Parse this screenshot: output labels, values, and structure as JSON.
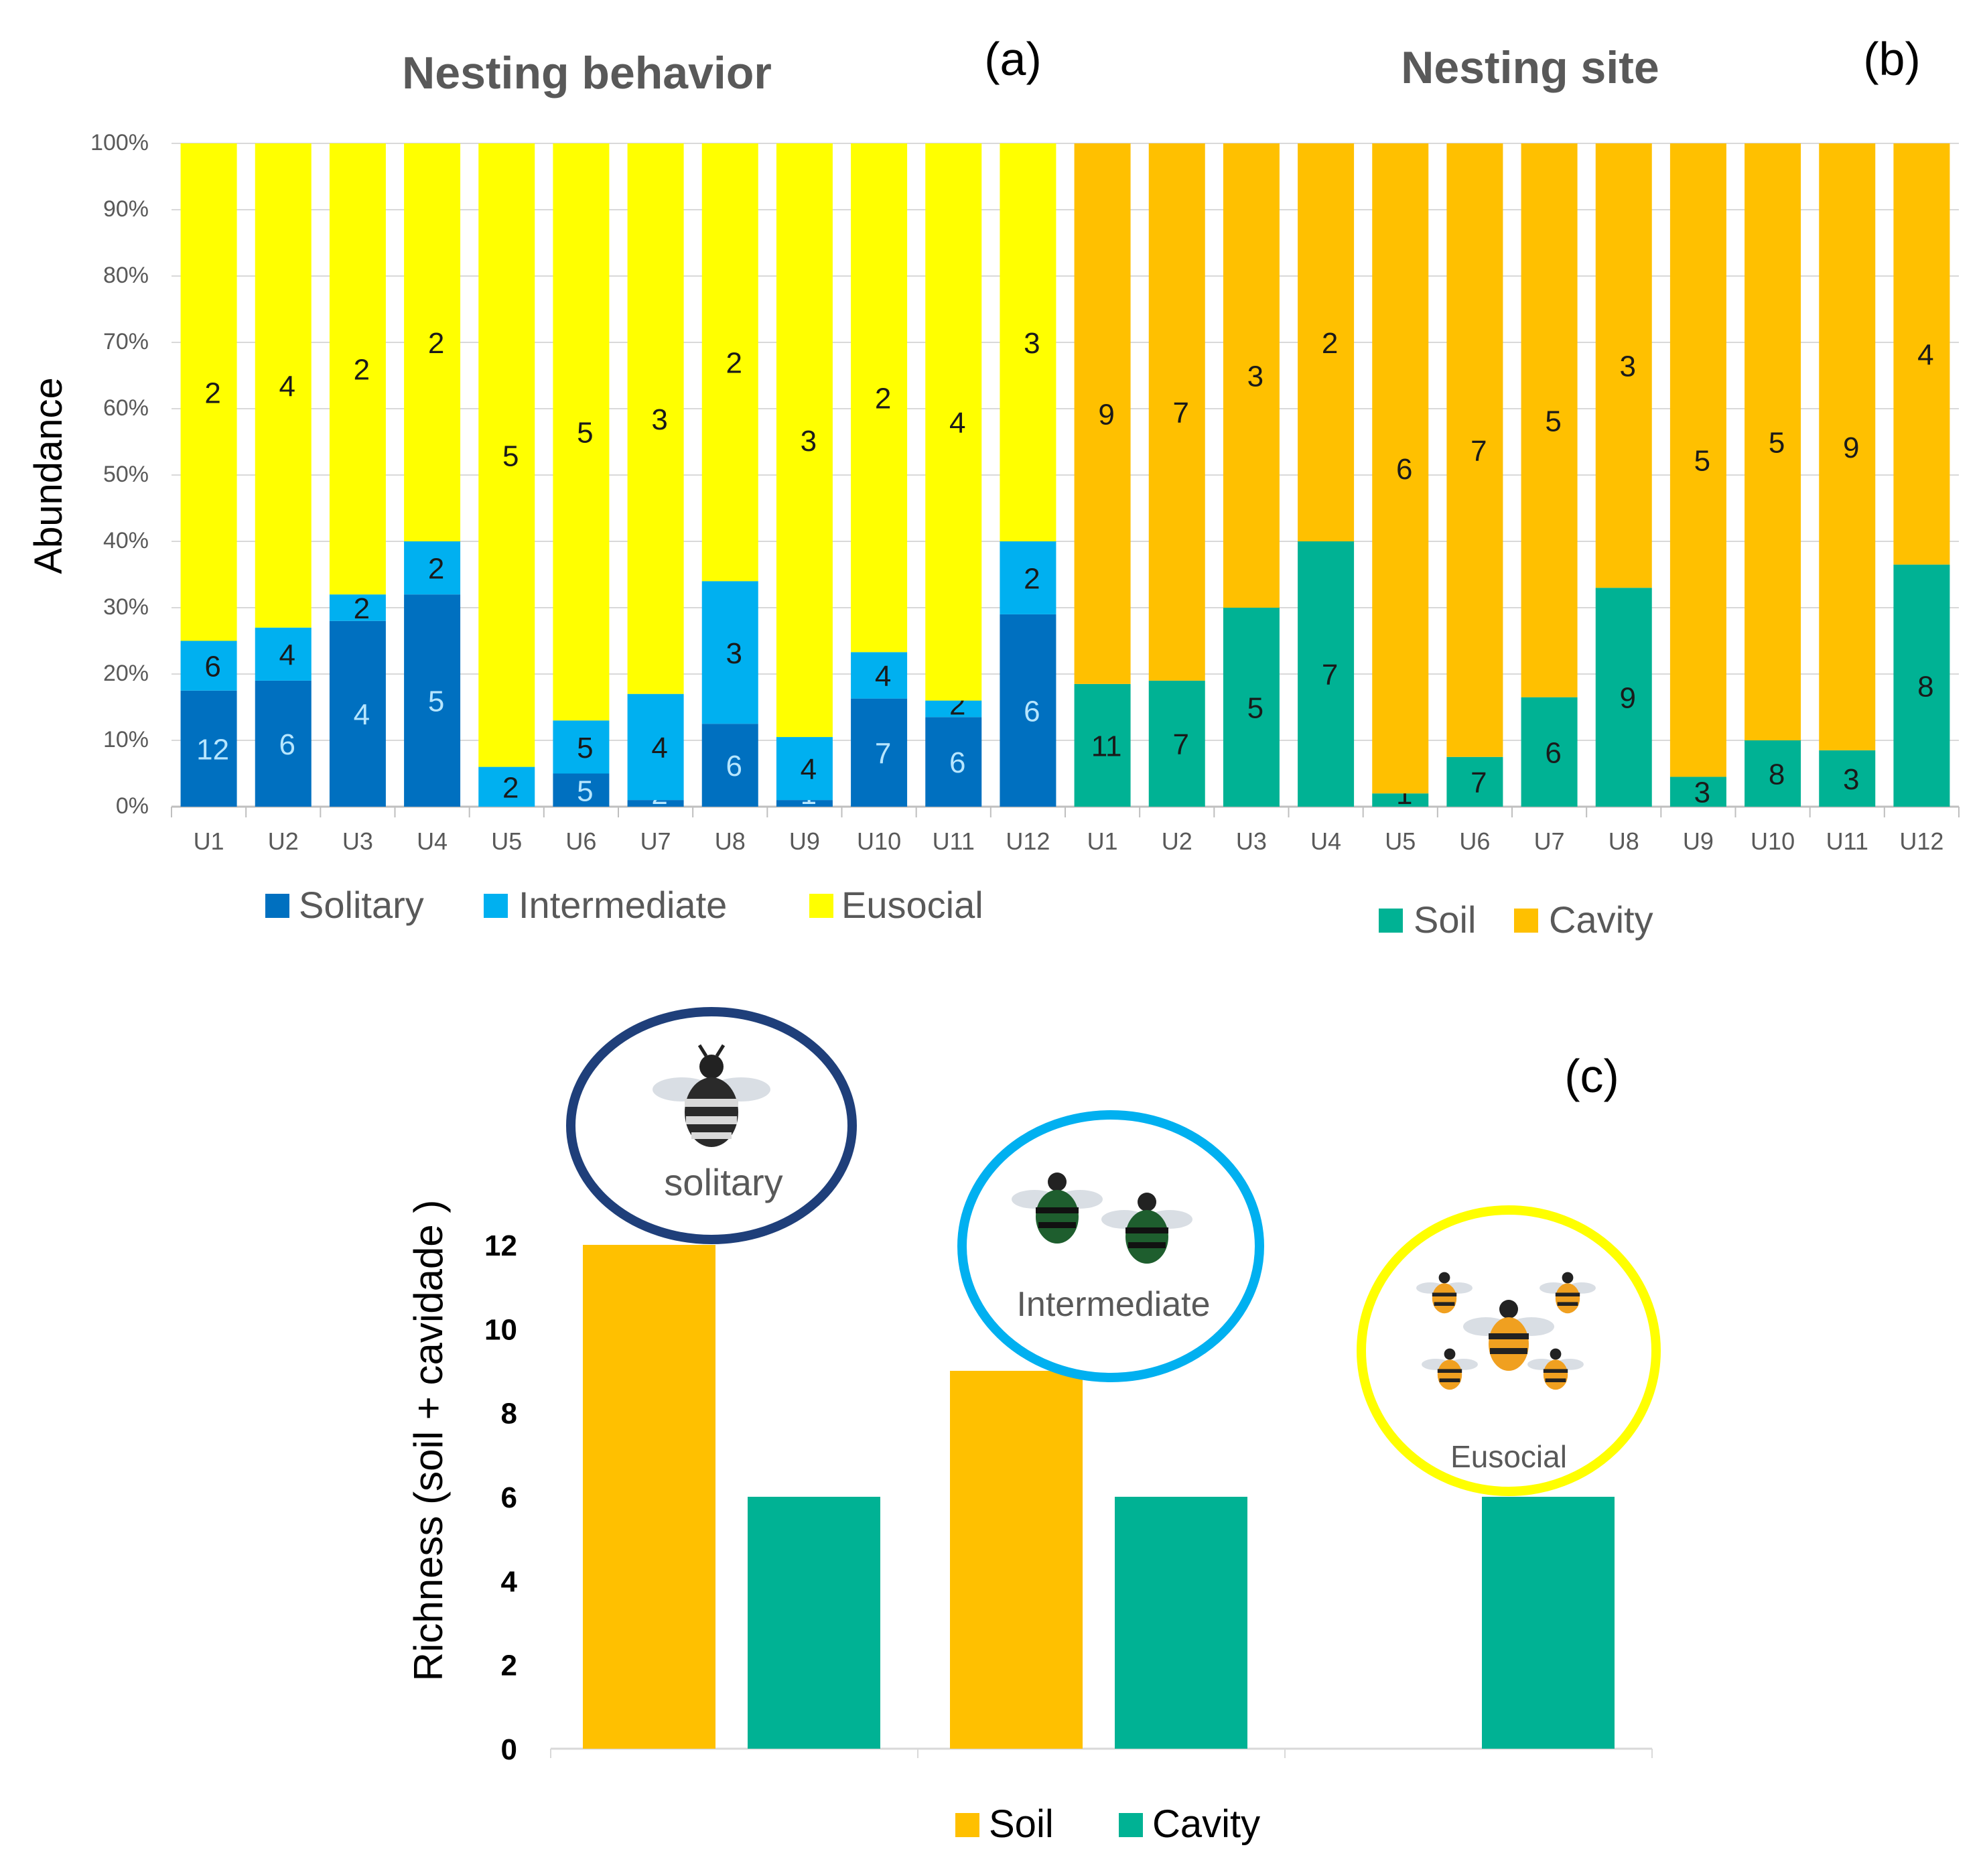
{
  "colors": {
    "solitary": "#0070C0",
    "intermediate": "#00B0F0",
    "eusocial": "#FFFF00",
    "soil_b": "#00B294",
    "cavity_b": "#FFC000",
    "soil_c": "#FFC000",
    "cavity_c": "#00B294",
    "solitary_ring": "#1F3F7A",
    "intermediate_ring": "#00B0F0",
    "eusocial_ring": "#FFFF00",
    "title_gray": "#595959",
    "axis_gray": "#595959",
    "gridline": "#D9D9D9"
  },
  "chart_data": [
    {
      "id": "a",
      "type": "bar",
      "stacked": "percent",
      "title": "Nesting behavior",
      "panel_label": "(a)",
      "ylabel": "Abundance",
      "ylim": [
        0,
        100
      ],
      "yticks": [
        "0%",
        "10%",
        "20%",
        "30%",
        "40%",
        "50%",
        "60%",
        "70%",
        "80%",
        "90%",
        "100%"
      ],
      "categories": [
        "U1",
        "U2",
        "U3",
        "U4",
        "U5",
        "U6",
        "U7",
        "U8",
        "U9",
        "U10",
        "U11",
        "U12"
      ],
      "series": [
        {
          "name": "Solitary",
          "percent": [
            17.5,
            19,
            28,
            32,
            0,
            5,
            1,
            12.5,
            1,
            16.3,
            13.5,
            29
          ],
          "labels": [
            "12",
            "6",
            "4",
            "5",
            "",
            "5",
            "2",
            "6",
            "1",
            "7",
            "6",
            "6"
          ]
        },
        {
          "name": "Intermediate",
          "percent": [
            7.5,
            8,
            4,
            8,
            6,
            8,
            16,
            21.5,
            9.5,
            7,
            2.5,
            11
          ],
          "labels": [
            "6",
            "4",
            "2",
            "2",
            "2",
            "5",
            "4",
            "3",
            "4",
            "4",
            "2",
            "2"
          ]
        },
        {
          "name": "Eusocial",
          "percent": [
            75,
            73,
            68,
            60,
            94,
            87,
            83,
            66,
            89.5,
            76.7,
            84,
            60
          ],
          "labels": [
            "2",
            "4",
            "2",
            "2",
            "5",
            "5",
            "3",
            "2",
            "3",
            "2",
            "4",
            "3"
          ]
        }
      ],
      "legend": [
        "Solitary",
        "Intermediate",
        "Eusocial"
      ]
    },
    {
      "id": "b",
      "type": "bar",
      "stacked": "percent",
      "title": "Nesting site",
      "panel_label": "(b)",
      "ylim": [
        0,
        100
      ],
      "categories": [
        "U1",
        "U2",
        "U3",
        "U4",
        "U5",
        "U6",
        "U7",
        "U8",
        "U9",
        "U10",
        "U11",
        "U12"
      ],
      "series": [
        {
          "name": "Soil",
          "percent": [
            18.5,
            19,
            30,
            40,
            2,
            7.5,
            16.5,
            33,
            4.5,
            10,
            8.5,
            36.5
          ],
          "labels": [
            "11",
            "7",
            "5",
            "7",
            "1",
            "7",
            "6",
            "9",
            "3",
            "8",
            "3",
            "8"
          ]
        },
        {
          "name": "Cavity",
          "percent": [
            81.5,
            81,
            70,
            60,
            98,
            92.5,
            83.5,
            67,
            95.5,
            90,
            91.5,
            63.5
          ],
          "labels": [
            "9",
            "7",
            "3",
            "2",
            "6",
            "7",
            "5",
            "3",
            "5",
            "5",
            "9",
            "4"
          ]
        }
      ],
      "legend": [
        "Soil",
        "Cavity"
      ]
    },
    {
      "id": "c",
      "type": "bar",
      "panel_label": "(c)",
      "ylabel": "Richness (soil + cavidade )",
      "ylim": [
        0,
        12
      ],
      "yticks": [
        "0",
        "2",
        "4",
        "6",
        "8",
        "10",
        "12"
      ],
      "categories": [
        "solitary",
        "Intermediate",
        "Eusocial"
      ],
      "series": [
        {
          "name": "Soil",
          "values": [
            12,
            9,
            0
          ]
        },
        {
          "name": "Cavity",
          "values": [
            6,
            6,
            6
          ]
        }
      ],
      "legend": [
        "Soil",
        "Cavity"
      ]
    }
  ],
  "icons": {
    "solitary": "bee-icon",
    "intermediate": "bee-pair-icon",
    "eusocial": "bee-swarm-icon"
  }
}
